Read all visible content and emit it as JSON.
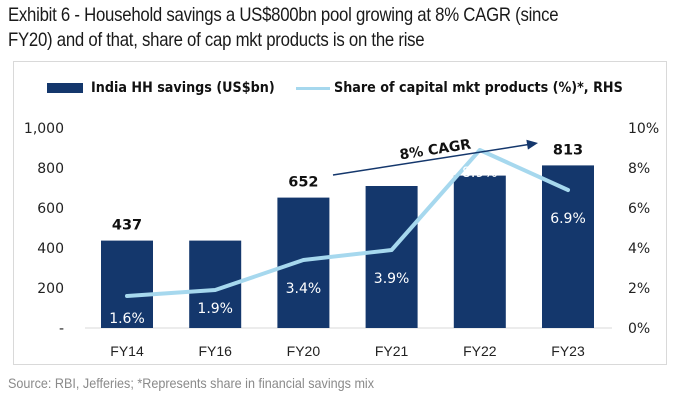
{
  "title": "Exhibit 6 - Household savings a US$800bn pool growing at 8% CAGR (since FY20) and of that, share of cap mkt products is on the rise",
  "title_lines": [
    "Exhibit 6 - Household savings a US$800bn pool growing at 8% CAGR (since",
    "FY20) and of that, share of cap mkt products is on the rise"
  ],
  "source": "Source: RBI, Jefferies; *Represents share in financial savings mix",
  "colors": {
    "bar": "#14376c",
    "line": "#a6d8ee",
    "arrow": "#14376c"
  },
  "chart_data": {
    "type": "bar",
    "title": "Exhibit 6 - Household savings a US$800bn pool growing at 8% CAGR (since FY20) and of that, share of cap mkt products is on the rise",
    "categories": [
      "FY14",
      "FY16",
      "FY20",
      "FY21",
      "FY22",
      "FY23"
    ],
    "series": [
      {
        "name": "India HH savings (US$bn)",
        "type": "bar",
        "axis": "left",
        "values": [
          437,
          437,
          652,
          710,
          762,
          813
        ],
        "data_labels": [
          "437",
          "",
          "652",
          "",
          "",
          "813"
        ]
      },
      {
        "name": "Share of capital mkt products (%)*, RHS",
        "type": "line",
        "axis": "right",
        "values": [
          1.6,
          1.9,
          3.4,
          3.9,
          8.9,
          6.9
        ],
        "data_labels": [
          "1.6%",
          "1.9%",
          "3.4%",
          "3.9%",
          "8.9%",
          "6.9%"
        ]
      }
    ],
    "y_left": {
      "min": 0,
      "max": 1000,
      "ticks": [
        "-",
        "200",
        "400",
        "600",
        "800",
        "1,000"
      ]
    },
    "y_right": {
      "min": 0,
      "max": 10,
      "ticks": [
        "0%",
        "2%",
        "4%",
        "6%",
        "8%",
        "10%"
      ]
    },
    "xlabel": "",
    "ylabel": "",
    "grid": false,
    "legend": "top",
    "annotations": [
      {
        "text": "8% CAGR",
        "type": "arrow",
        "from": "FY20",
        "to": "FY23"
      }
    ]
  }
}
